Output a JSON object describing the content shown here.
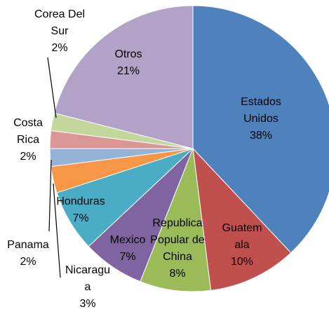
{
  "chart_data": {
    "type": "pie",
    "categories": [
      "Estados Unidos",
      "Guatemala",
      "Republica Popular de China",
      "Mexico",
      "Honduras",
      "Nicaragua",
      "Panama",
      "Costa Rica",
      "Corea Del Sur",
      "Otros"
    ],
    "values": [
      38,
      10,
      8,
      7,
      7,
      3,
      2,
      2,
      2,
      21
    ],
    "value_labels": [
      "38%",
      "10%",
      "8%",
      "7%",
      "7%",
      "3%",
      "2%",
      "2%",
      "2%",
      "21%"
    ],
    "colors": [
      "#4F81BD",
      "#C0504D",
      "#9BBB59",
      "#8064A2",
      "#4BACC6",
      "#F79646",
      "#95B3D7",
      "#D99694",
      "#C3D69B",
      "#B3A2C7"
    ]
  }
}
